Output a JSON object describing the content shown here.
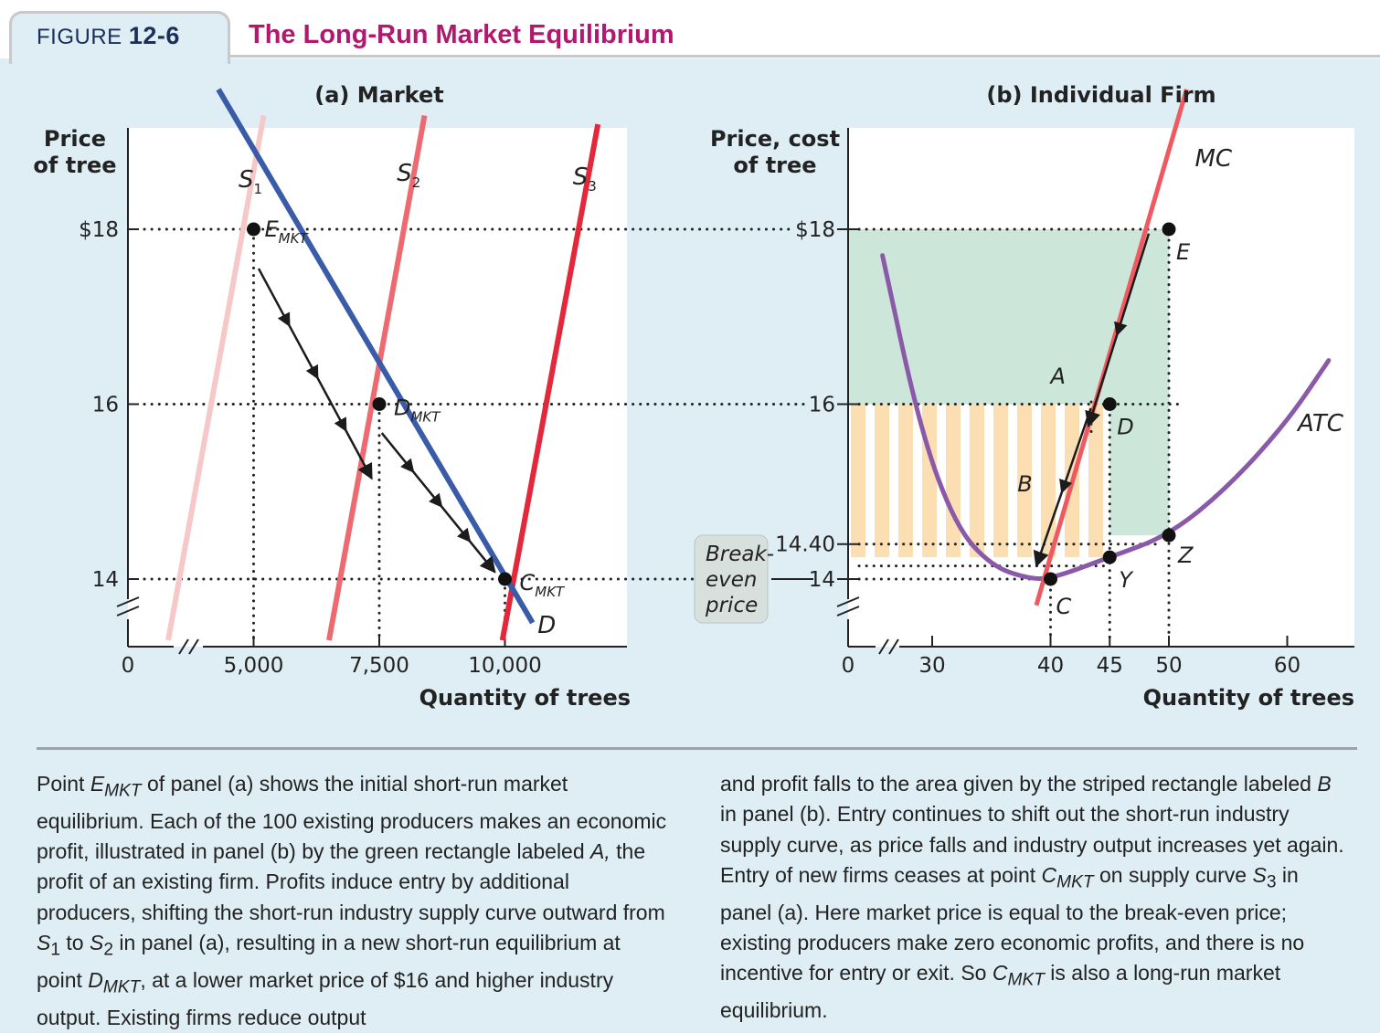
{
  "header": {
    "figure_word": "FIGURE",
    "figure_number": "12-6",
    "title": "The Long-Run Market Equilibrium"
  },
  "colors": {
    "title": "#b0196e",
    "figure_label": "#1a2f5a",
    "demand": "#3a5ba8",
    "s1": "#f6c8c8",
    "s2": "#ec6a70",
    "s3": "#e3283b",
    "mc": "#ef5a60",
    "atc": "#8a5aa8",
    "profit_area": "#cde6da",
    "striped_area": "#fbdfb3",
    "background": "#dfeef5"
  },
  "chart_data": [
    {
      "type": "line",
      "panel_title": "(a) Market",
      "ylabel": "Price of tree",
      "xlabel": "Quantity of trees",
      "x_ticks": [
        "0",
        "5,000",
        "7,500",
        "10,000"
      ],
      "y_ticks": [
        "$18",
        "16",
        "14"
      ],
      "xlim": [
        2500,
        12500
      ],
      "ylim": [
        13.2,
        19.2
      ],
      "axis_break": true,
      "series": [
        {
          "name": "S1",
          "label_main": "S",
          "label_sub": "1",
          "points": [
            [
              3300,
              13.3
            ],
            [
              5200,
              19.3
            ]
          ]
        },
        {
          "name": "S2",
          "label_main": "S",
          "label_sub": "2",
          "points": [
            [
              6500,
              13.3
            ],
            [
              8400,
              19.3
            ]
          ]
        },
        {
          "name": "S3",
          "label_main": "S",
          "label_sub": "3",
          "points": [
            [
              9950,
              13.3
            ],
            [
              11850,
              19.2
            ]
          ]
        },
        {
          "name": "D",
          "label_main": "D",
          "label_sub": "",
          "points": [
            [
              4300,
              19.6
            ],
            [
              10550,
              13.5
            ]
          ]
        }
      ],
      "points": [
        {
          "label_main": "E",
          "label_sub": "MKT",
          "x": 5000,
          "y": 18
        },
        {
          "label_main": "D",
          "label_sub": "MKT",
          "x": 7500,
          "y": 16
        },
        {
          "label_main": "C",
          "label_sub": "MKT",
          "x": 10000,
          "y": 14
        }
      ],
      "arrows": [
        {
          "from": [
            5100,
            17.55
          ],
          "to": [
            7350,
            15.15
          ]
        },
        {
          "from": [
            7550,
            15.67
          ],
          "to": [
            9800,
            14.08
          ]
        }
      ]
    },
    {
      "type": "line",
      "panel_title": "(b) Individual Firm",
      "ylabel": "Price, cost of tree",
      "xlabel": "Quantity of trees",
      "x_ticks": [
        "0",
        "30",
        "40",
        "45",
        "50",
        "60"
      ],
      "y_ticks": [
        "$18",
        "16",
        "14.40",
        "14"
      ],
      "xlim": [
        25,
        65
      ],
      "ylim": [
        13.2,
        19.2
      ],
      "axis_break": true,
      "series": [
        {
          "name": "MC",
          "points": [
            [
              38.8,
              13.7
            ],
            [
              51.5,
              19.6
            ]
          ]
        },
        {
          "name": "ATC",
          "points": [
            [
              25.8,
              17.7
            ],
            [
              29,
              15.7
            ],
            [
              32,
              14.6
            ],
            [
              35,
              14.15
            ],
            [
              38,
              14.01
            ],
            [
              40,
              14
            ],
            [
              45,
              14.25
            ],
            [
              50,
              14.5
            ],
            [
              55,
              15.05
            ],
            [
              60,
              15.8
            ],
            [
              63.5,
              16.5
            ]
          ]
        }
      ],
      "points": [
        {
          "label": "E",
          "x": 50,
          "y": 18
        },
        {
          "label": "D",
          "x": 45,
          "y": 16
        },
        {
          "label": "Z",
          "x": 50,
          "y": 14.5
        },
        {
          "label": "Y",
          "x": 45,
          "y": 14.25
        },
        {
          "label": "C",
          "x": 40,
          "y": 14
        }
      ],
      "areas": [
        {
          "label": "A",
          "x": [
            25,
            50
          ],
          "y": [
            14.5,
            18
          ]
        },
        {
          "label": "B",
          "x": [
            25,
            45
          ],
          "y": [
            14.25,
            16
          ]
        }
      ],
      "arrows": [
        {
          "from": [
            48.3,
            17.95
          ],
          "to": [
            43.2,
            15.75
          ]
        },
        {
          "from": [
            43.4,
            15.95
          ],
          "to": [
            38.8,
            14.15
          ]
        }
      ],
      "callout": "Break-even price"
    }
  ],
  "caption_left": {
    "t1": "Point ",
    "e_main": "E",
    "e_sub": "MKT",
    "t2": " of panel (a) shows the initial short-run market equilibrium. Each of the 100 existing producers makes an economic profit, illustrated in panel (b) by the green rectangle labeled ",
    "a_label": "A,",
    "t3": " the profit of an existing firm. Profits induce entry by additional producers, shifting the short-run industry supply curve outward from ",
    "s1_main": "S",
    "s1_sub": "1",
    "t4": " to ",
    "s2_main": "S",
    "s2_sub": "2",
    "t5": " in panel (a), resulting in a new short-run equilibrium at point ",
    "d_main": "D",
    "d_sub": "MKT",
    "t6": ", at a lower market price of $16 and higher industry output. Existing firms reduce output"
  },
  "caption_right": {
    "t1": "and profit falls to the area given by the striped rectangle labeled ",
    "b_label": "B",
    "t2": " in panel (b). Entry continues to shift out the short-run industry supply curve, as price falls and industry output increases yet again. Entry of new firms ceases at point ",
    "c_main": "C",
    "c_sub": "MKT",
    "t3": " on supply curve ",
    "s3_main": "S",
    "s3_sub": "3",
    "t4": " in panel (a). Here market price is equal to the break-even price; existing producers make zero economic profits, and there is no incentive for entry or exit. So ",
    "c2_main": "C",
    "c2_sub": "MKT",
    "t5": " is also a long-run market equilibrium."
  }
}
